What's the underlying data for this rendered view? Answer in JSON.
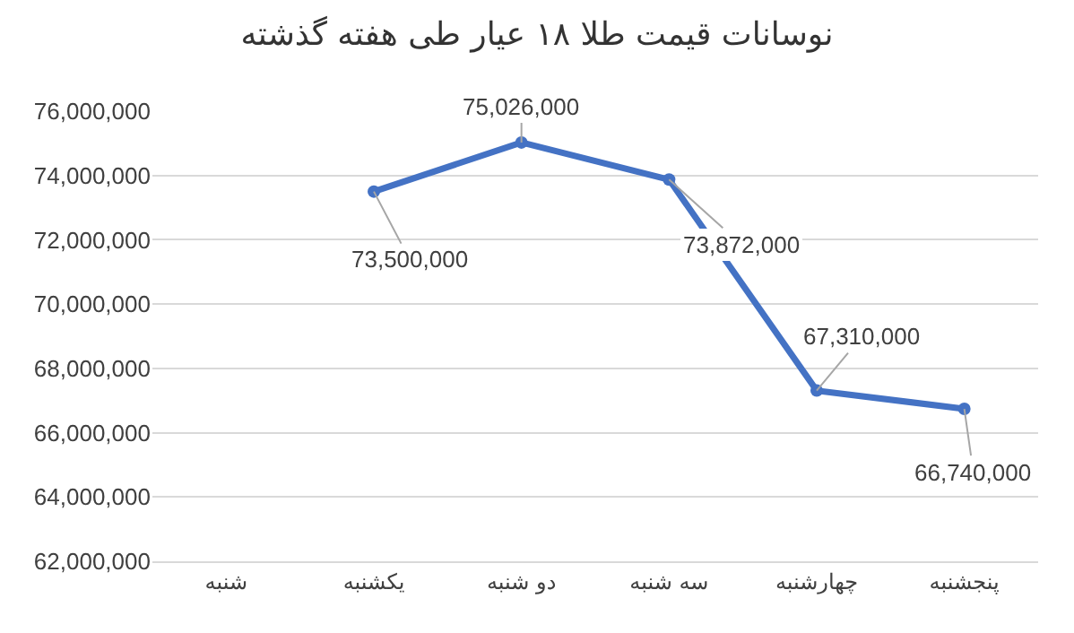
{
  "chart_data": {
    "type": "line",
    "title": "نوسانات قیمت طلا ۱۸ عیار طی هفته گذشته",
    "categories": [
      "شنبه",
      "یکشنبه",
      "دو شنبه",
      "سه شنبه",
      "چهارشنبه",
      "پنجشنبه"
    ],
    "series": [
      {
        "color": "#4472c4",
        "values": [
          null,
          73500000,
          75026000,
          73872000,
          67310000,
          66740000
        ],
        "value_labels": [
          null,
          "73,500,000",
          "75,026,000",
          "73,872,000",
          "67,310,000",
          "66,740,000"
        ]
      }
    ],
    "ylim": [
      62000000,
      76000000
    ],
    "yticks": [
      {
        "value": 62000000,
        "label": "62,000,000"
      },
      {
        "value": 64000000,
        "label": "64,000,000"
      },
      {
        "value": 66000000,
        "label": "66,000,000"
      },
      {
        "value": 68000000,
        "label": "68,000,000"
      },
      {
        "value": 70000000,
        "label": "70,000,000"
      },
      {
        "value": 72000000,
        "label": "72,000,000"
      },
      {
        "value": 74000000,
        "label": "74,000,000"
      },
      {
        "value": 76000000,
        "label": "76,000,000"
      }
    ],
    "grid": "y",
    "marker": "circle",
    "line_style": "solid"
  }
}
